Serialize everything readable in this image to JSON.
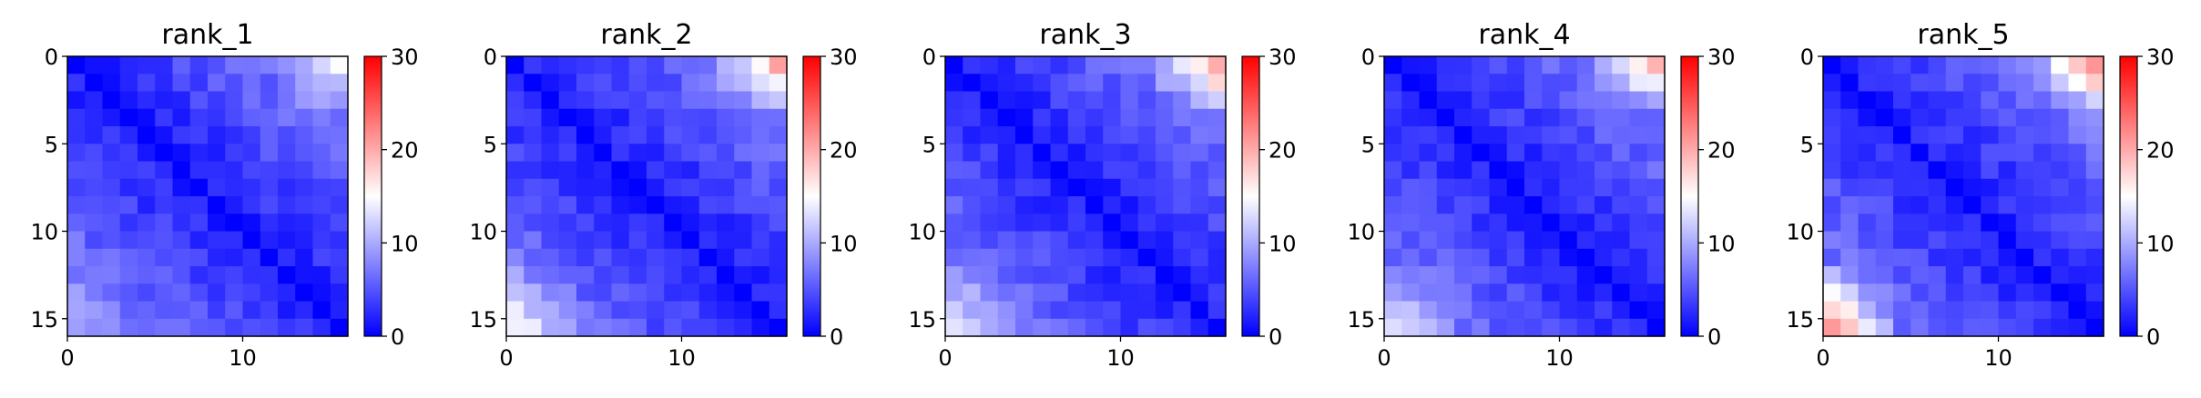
{
  "chart_data": [
    {
      "type": "heatmap",
      "title": "rank_1",
      "size": 16,
      "x_ticks": [
        "0",
        "10"
      ],
      "y_ticks": [
        "0",
        "5",
        "10",
        "15"
      ],
      "colorbar": {
        "min": 0,
        "max": 30,
        "ticks": [
          "0",
          "10",
          "20",
          "30"
        ],
        "colormap": "bwr"
      },
      "corner_hot": {
        "top_right": 14,
        "bottom_left": 9
      },
      "grid": false
    },
    {
      "type": "heatmap",
      "title": "rank_2",
      "size": 16,
      "x_ticks": [
        "0",
        "10"
      ],
      "y_ticks": [
        "0",
        "5",
        "10",
        "15"
      ],
      "colorbar": {
        "min": 0,
        "max": 30,
        "ticks": [
          "0",
          "10",
          "20",
          "30"
        ],
        "colormap": "bwr"
      },
      "corner_hot": {
        "top_right": 19,
        "bottom_left": 15
      },
      "grid": false
    },
    {
      "type": "heatmap",
      "title": "rank_3",
      "size": 16,
      "x_ticks": [
        "0",
        "10"
      ],
      "y_ticks": [
        "0",
        "5",
        "10",
        "15"
      ],
      "colorbar": {
        "min": 0,
        "max": 30,
        "ticks": [
          "0",
          "10",
          "20",
          "30"
        ],
        "colormap": "bwr"
      },
      "corner_hot": {
        "top_right": 20,
        "bottom_left": 14
      },
      "grid": false
    },
    {
      "type": "heatmap",
      "title": "rank_4",
      "size": 16,
      "x_ticks": [
        "0",
        "10"
      ],
      "y_ticks": [
        "0",
        "5",
        "10",
        "15"
      ],
      "colorbar": {
        "min": 0,
        "max": 30,
        "ticks": [
          "0",
          "10",
          "20",
          "30"
        ],
        "colormap": "bwr"
      },
      "corner_hot": {
        "top_right": 18,
        "bottom_left": 13
      },
      "grid": false
    },
    {
      "type": "heatmap",
      "title": "rank_5",
      "size": 16,
      "x_ticks": [
        "0",
        "10"
      ],
      "y_ticks": [
        "0",
        "5",
        "10",
        "15"
      ],
      "colorbar": {
        "min": 0,
        "max": 30,
        "ticks": [
          "0",
          "10",
          "20",
          "30"
        ],
        "colormap": "bwr"
      },
      "corner_hot": {
        "top_right": 21,
        "bottom_left": 21
      },
      "grid": false
    }
  ]
}
